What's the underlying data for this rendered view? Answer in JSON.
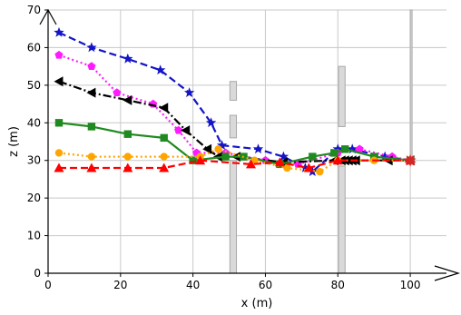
{
  "chart_data": {
    "type": "line",
    "xlabel": "x (m)",
    "ylabel": "z (m)",
    "xlim": [
      0,
      110
    ],
    "ylim": [
      0,
      70
    ],
    "xticks": [
      0,
      20,
      40,
      60,
      80,
      100
    ],
    "yticks": [
      0,
      10,
      20,
      30,
      40,
      50,
      60,
      70
    ],
    "grid": true,
    "obstacles": [
      {
        "x_range": [
          50.2,
          52
        ],
        "z_range": [
          0,
          30
        ]
      },
      {
        "x_range": [
          50.2,
          52
        ],
        "z_range": [
          36,
          42
        ]
      },
      {
        "x_range": [
          50.2,
          52
        ],
        "z_range": [
          46,
          51
        ]
      },
      {
        "x_range": [
          80.2,
          82
        ],
        "z_range": [
          0,
          28.5
        ]
      },
      {
        "x_range": [
          80.2,
          82
        ],
        "z_range": [
          39,
          55
        ]
      },
      {
        "x_range": [
          100,
          100.5
        ],
        "z_range": [
          30,
          70
        ]
      }
    ],
    "target_point": {
      "x": 100,
      "z": 30,
      "color": "#d62728"
    },
    "series": [
      {
        "color": "#1414c8",
        "line": "dashed",
        "marker": "star",
        "points": [
          [
            3,
            64
          ],
          [
            12,
            60
          ],
          [
            22,
            57
          ],
          [
            31,
            54
          ],
          [
            39,
            48
          ],
          [
            45,
            40
          ],
          [
            48,
            34
          ],
          [
            58,
            33
          ],
          [
            65,
            31
          ],
          [
            71,
            28
          ],
          [
            73,
            27
          ],
          [
            80,
            33
          ],
          [
            84,
            33
          ],
          [
            93,
            31
          ],
          [
            100,
            30
          ]
        ]
      },
      {
        "color": "#ff1aff",
        "line": "dotted",
        "marker": "pentagon",
        "points": [
          [
            3,
            58
          ],
          [
            12,
            55
          ],
          [
            19,
            48
          ],
          [
            29,
            45
          ],
          [
            36,
            38
          ],
          [
            41,
            32
          ],
          [
            49,
            32
          ],
          [
            60,
            30
          ],
          [
            69,
            29
          ],
          [
            80,
            32
          ],
          [
            86,
            33
          ],
          [
            95,
            31
          ],
          [
            100,
            30
          ]
        ]
      },
      {
        "color": "#000000",
        "line": "dashdot",
        "marker": "triangle-left",
        "points": [
          [
            3,
            51
          ],
          [
            12,
            48
          ],
          [
            22,
            46
          ],
          [
            32,
            44
          ],
          [
            38,
            38
          ],
          [
            44,
            33
          ],
          [
            47,
            31
          ],
          [
            52,
            31
          ],
          [
            65,
            29.5
          ],
          [
            79,
            30
          ],
          [
            81,
            30
          ],
          [
            82,
            30
          ],
          [
            83,
            30
          ],
          [
            84,
            30
          ],
          [
            85,
            30
          ],
          [
            94,
            30
          ],
          [
            100,
            30
          ]
        ]
      },
      {
        "color": "#1f8a1f",
        "line": "solid",
        "marker": "square",
        "points": [
          [
            3,
            40
          ],
          [
            12,
            39
          ],
          [
            22,
            37
          ],
          [
            32,
            36
          ],
          [
            40,
            30
          ],
          [
            49,
            31
          ],
          [
            54,
            31
          ],
          [
            64,
            29
          ],
          [
            73,
            31
          ],
          [
            79,
            32
          ],
          [
            82,
            33
          ],
          [
            90,
            31
          ],
          [
            100,
            30
          ]
        ]
      },
      {
        "color": "#ffa500",
        "line": "dotted",
        "marker": "circle",
        "points": [
          [
            3,
            32
          ],
          [
            12,
            31
          ],
          [
            22,
            31
          ],
          [
            32,
            31
          ],
          [
            42,
            31
          ],
          [
            47,
            33
          ],
          [
            57,
            30
          ],
          [
            66,
            28
          ],
          [
            75,
            27
          ],
          [
            80,
            30
          ],
          [
            90,
            30
          ],
          [
            100,
            30
          ]
        ]
      },
      {
        "color": "#ff0000",
        "line": "dashed",
        "marker": "triangle-up",
        "points": [
          [
            3,
            28
          ],
          [
            12,
            28
          ],
          [
            22,
            28
          ],
          [
            32,
            28
          ],
          [
            42,
            30
          ],
          [
            56,
            29
          ],
          [
            64,
            29.5
          ],
          [
            72,
            28
          ],
          [
            80,
            30
          ],
          [
            100,
            30
          ]
        ]
      }
    ]
  }
}
